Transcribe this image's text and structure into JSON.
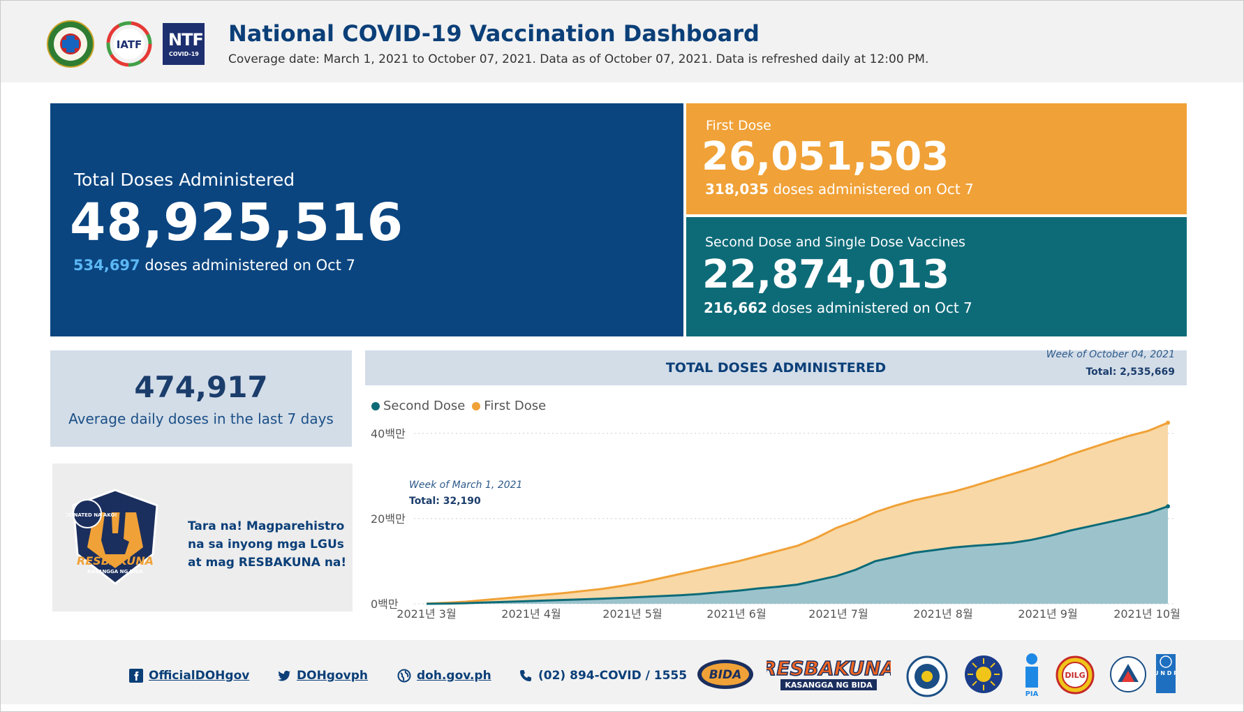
{
  "header": {
    "title": "National COVID-19 Vaccination Dashboard",
    "subtitle": "Coverage date: March 1, 2021 to October 07, 2021. Data as of October 07, 2021. Data is refreshed daily at 12:00 PM.",
    "logos": {
      "iatf": "IATF",
      "ntf_big": "NTF",
      "ntf_small": "COVID-19"
    }
  },
  "kpis": {
    "total": {
      "label": "Total Doses Administered",
      "value": "48,925,516",
      "daily": "534,697",
      "daily_suffix": " doses administered on Oct 7"
    },
    "first": {
      "label": "First Dose",
      "value": "26,051,503",
      "daily": "318,035",
      "daily_suffix": " doses administered on Oct 7"
    },
    "second": {
      "label": "Second Dose and Single Dose Vaccines",
      "value": "22,874,013",
      "daily": "216,662",
      "daily_suffix": " doses administered on Oct 7"
    }
  },
  "average": {
    "value": "474,917",
    "label": "Average daily doses in the last 7 days"
  },
  "promo": {
    "lines": [
      "Tara na! Magparehistro",
      "na sa inyong mga LGUs",
      "at mag RESBAKUNA na!"
    ],
    "badge_text": "RESBAKUNA",
    "badge_sub": "KASANGGA NG BIDA",
    "badge_top": "VACCINATED NA AKO!"
  },
  "chart_data": {
    "type": "area",
    "title": "TOTAL DOSES ADMINISTERED",
    "series": [
      {
        "name": "Second Dose",
        "color": "#0d6b78",
        "values": [
          0.0,
          0.05,
          0.15,
          0.3,
          0.45,
          0.6,
          0.75,
          0.9,
          1.05,
          1.2,
          1.4,
          1.6,
          1.8,
          2.0,
          2.3,
          2.7,
          3.1,
          3.6,
          4.0,
          4.5,
          5.5,
          6.5,
          8.0,
          10.0,
          11.0,
          12.0,
          12.6,
          13.2,
          13.6,
          13.9,
          14.3,
          15.0,
          16.0,
          17.2,
          18.2,
          19.2,
          20.2,
          21.3,
          22.87
        ]
      },
      {
        "name": "First Dose",
        "color": "#f0a137",
        "values": [
          0.032,
          0.25,
          0.5,
          0.9,
          1.3,
          1.7,
          2.1,
          2.5,
          3.0,
          3.5,
          4.2,
          5.0,
          6.0,
          7.0,
          8.0,
          9.0,
          10.0,
          11.2,
          12.4,
          13.6,
          15.5,
          17.8,
          19.5,
          21.5,
          23.0,
          24.3,
          25.3,
          26.3,
          27.6,
          29.0,
          30.4,
          31.8,
          33.3,
          35.0,
          36.5,
          38.0,
          39.4,
          40.6,
          42.5
        ]
      }
    ],
    "x_ticks": [
      "2021년 3월",
      "2021년 4월",
      "2021년 5월",
      "2021년 6월",
      "2021년 7월",
      "2021년 8월",
      "2021년 9월",
      "2021년 10월"
    ],
    "y_ticks": [
      "0백만",
      "20백만",
      "40백만"
    ],
    "ylim": [
      0,
      48
    ],
    "legend_position": "top-left",
    "annotations": {
      "start_week": "Week of March 1, 2021",
      "start_total": "Total: 32,190",
      "end_week": "Week of October 04, 2021",
      "end_total": "Total: 2,535,669"
    }
  },
  "footer": {
    "facebook": "OfficialDOHgov",
    "twitter": "DOHgovph",
    "website": "doh.gov.ph",
    "phone": "(02) 894-COVID / 1555",
    "partner_labels": {
      "bida": "BIDA",
      "resbakuna": "RESBAKUNA",
      "resbakuna_sub": "KASANGGA NG BIDA",
      "pia": "PIA",
      "dilg": "DILG",
      "undp": "U N D P"
    }
  },
  "colors": {
    "navy": "#0a4580",
    "orange": "#f0a137",
    "teal": "#0d6b78",
    "light_blue_panel": "#d3dde8"
  }
}
